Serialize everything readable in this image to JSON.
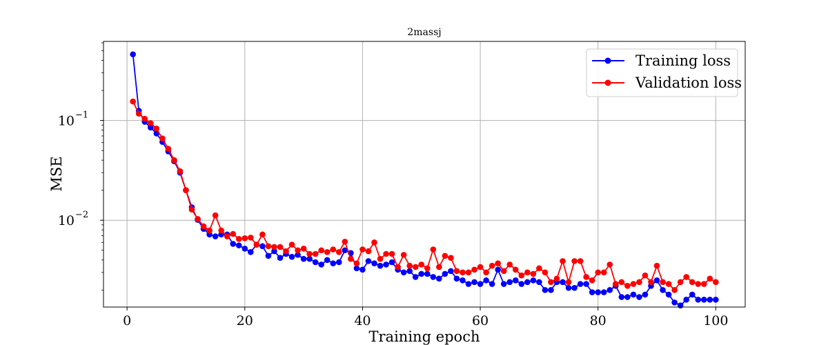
{
  "chart_data": {
    "type": "line",
    "title": "2massj",
    "xlabel": "Training epoch",
    "ylabel": "MSE",
    "xlim": [
      -4,
      105
    ],
    "ylim": [
      0.00135,
      0.62
    ],
    "yscale": "log",
    "grid": true,
    "legend_position": "top-right",
    "x_ticks": [
      {
        "value": 0,
        "label": "0"
      },
      {
        "value": 20,
        "label": "20"
      },
      {
        "value": 40,
        "label": "40"
      },
      {
        "value": 60,
        "label": "60"
      },
      {
        "value": 80,
        "label": "80"
      },
      {
        "value": 100,
        "label": "100"
      }
    ],
    "y_ticks": [
      {
        "value": 0.1,
        "base": "10",
        "exp": "−1"
      },
      {
        "value": 0.01,
        "base": "10",
        "exp": "−2"
      }
    ],
    "x": [
      1,
      2,
      3,
      4,
      5,
      6,
      7,
      8,
      9,
      10,
      11,
      12,
      13,
      14,
      15,
      16,
      17,
      18,
      19,
      20,
      21,
      22,
      23,
      24,
      25,
      26,
      27,
      28,
      29,
      30,
      31,
      32,
      33,
      34,
      35,
      36,
      37,
      38,
      39,
      40,
      41,
      42,
      43,
      44,
      45,
      46,
      47,
      48,
      49,
      50,
      51,
      52,
      53,
      54,
      55,
      56,
      57,
      58,
      59,
      60,
      61,
      62,
      63,
      64,
      65,
      66,
      67,
      68,
      69,
      70,
      71,
      72,
      73,
      74,
      75,
      76,
      77,
      78,
      79,
      80,
      81,
      82,
      83,
      84,
      85,
      86,
      87,
      88,
      89,
      90,
      91,
      92,
      93,
      94,
      95,
      96,
      97,
      98,
      99,
      100
    ],
    "series": [
      {
        "name": "Training loss",
        "color": "#0000ff",
        "values": [
          0.46,
          0.125,
          0.097,
          0.085,
          0.074,
          0.061,
          0.049,
          0.039,
          0.03,
          0.02,
          0.0135,
          0.0101,
          0.0082,
          0.0072,
          0.0069,
          0.0072,
          0.0072,
          0.0058,
          0.0056,
          0.0052,
          0.0048,
          0.0057,
          0.0055,
          0.0044,
          0.0049,
          0.0042,
          0.0046,
          0.0043,
          0.0045,
          0.0041,
          0.0041,
          0.0038,
          0.0036,
          0.004,
          0.0037,
          0.0038,
          0.005,
          0.0047,
          0.0033,
          0.0032,
          0.0039,
          0.0037,
          0.0035,
          0.0036,
          0.0038,
          0.0032,
          0.003,
          0.0031,
          0.0027,
          0.0029,
          0.0029,
          0.0027,
          0.0026,
          0.0029,
          0.0031,
          0.0026,
          0.0025,
          0.0023,
          0.0024,
          0.0023,
          0.0025,
          0.0023,
          0.0032,
          0.0023,
          0.0024,
          0.0025,
          0.0023,
          0.0024,
          0.0025,
          0.0024,
          0.002,
          0.002,
          0.0024,
          0.0024,
          0.0021,
          0.0021,
          0.0023,
          0.0023,
          0.0019,
          0.0019,
          0.0019,
          0.002,
          0.0022,
          0.0017,
          0.0017,
          0.0018,
          0.0017,
          0.0018,
          0.0022,
          0.0025,
          0.002,
          0.0018,
          0.0015,
          0.0014,
          0.0016,
          0.0018,
          0.0016,
          0.0016,
          0.0016,
          0.0016
        ]
      },
      {
        "name": "Validation loss",
        "color": "#ff0000",
        "values": [
          0.155,
          0.117,
          0.104,
          0.094,
          0.083,
          0.066,
          0.052,
          0.04,
          0.031,
          0.02,
          0.0128,
          0.0103,
          0.0087,
          0.0079,
          0.0112,
          0.0079,
          0.0069,
          0.0073,
          0.0065,
          0.0066,
          0.0067,
          0.0057,
          0.0072,
          0.0055,
          0.0054,
          0.0054,
          0.0049,
          0.0057,
          0.005,
          0.0052,
          0.0046,
          0.0046,
          0.005,
          0.0048,
          0.0051,
          0.0048,
          0.0061,
          0.0041,
          0.0037,
          0.0051,
          0.0049,
          0.006,
          0.0041,
          0.0046,
          0.0046,
          0.0034,
          0.0045,
          0.0035,
          0.0034,
          0.0036,
          0.0033,
          0.0051,
          0.0034,
          0.0044,
          0.0042,
          0.0031,
          0.003,
          0.003,
          0.0032,
          0.0034,
          0.003,
          0.0035,
          0.0037,
          0.0031,
          0.0036,
          0.0032,
          0.0028,
          0.003,
          0.0029,
          0.0033,
          0.003,
          0.0024,
          0.0026,
          0.0039,
          0.0024,
          0.0039,
          0.0039,
          0.0027,
          0.0025,
          0.003,
          0.003,
          0.0036,
          0.0023,
          0.0024,
          0.0022,
          0.0023,
          0.0024,
          0.0028,
          0.0024,
          0.0035,
          0.0024,
          0.0023,
          0.002,
          0.0024,
          0.0027,
          0.0024,
          0.0023,
          0.0023,
          0.0026,
          0.0024
        ]
      }
    ]
  }
}
